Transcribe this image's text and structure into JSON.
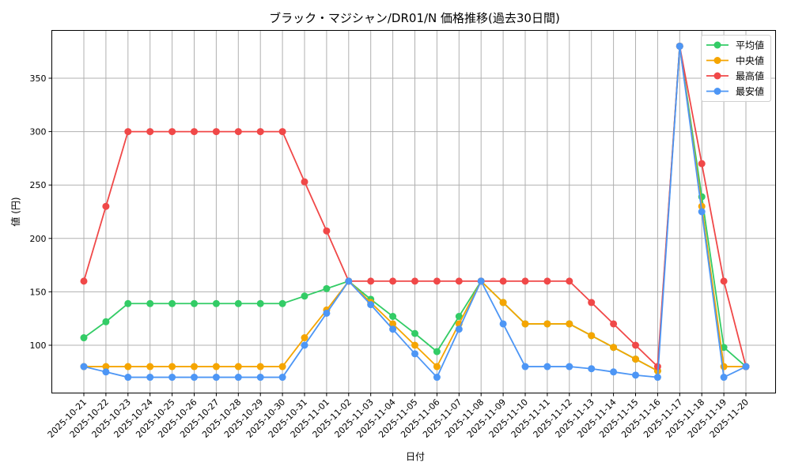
{
  "chart_data": {
    "type": "line",
    "title": "ブラック・マジシャン/DR01/N 価格推移(過去30日間)",
    "xlabel": "日付",
    "ylabel": "値 (円)",
    "ylim": [
      55,
      392
    ],
    "yticks": [
      100,
      150,
      200,
      250,
      300,
      350
    ],
    "grid": true,
    "legend_position": "upper right",
    "x": [
      "2025-10-21",
      "2025-10-22",
      "2025-10-23",
      "2025-10-24",
      "2025-10-25",
      "2025-10-26",
      "2025-10-27",
      "2025-10-28",
      "2025-10-29",
      "2025-10-30",
      "2025-10-31",
      "2025-11-01",
      "2025-11-02",
      "2025-11-03",
      "2025-11-04",
      "2025-11-05",
      "2025-11-06",
      "2025-11-07",
      "2025-11-08",
      "2025-11-09",
      "2025-11-10",
      "2025-11-11",
      "2025-11-12",
      "2025-11-13",
      "2025-11-14",
      "2025-11-15",
      "2025-11-16",
      "2025-11-17",
      "2025-11-18",
      "2025-11-19",
      "2025-11-20"
    ],
    "series": [
      {
        "name": "平均値",
        "color": "#33cc66",
        "values": [
          107,
          122,
          139,
          139,
          139,
          139,
          139,
          139,
          139,
          139,
          146,
          153,
          160,
          143,
          127,
          111,
          94,
          127,
          160,
          140,
          120,
          120,
          120,
          109,
          98,
          87,
          76,
          380,
          239,
          98,
          80
        ]
      },
      {
        "name": "中央値",
        "color": "#f5a500",
        "values": [
          80,
          80,
          80,
          80,
          80,
          80,
          80,
          80,
          80,
          80,
          107,
          133,
          160,
          140,
          120,
          100,
          80,
          120,
          160,
          140,
          120,
          120,
          120,
          109,
          98,
          87,
          76,
          380,
          230,
          80,
          80
        ]
      },
      {
        "name": "最高値",
        "color": "#f04848",
        "values": [
          160,
          230,
          300,
          300,
          300,
          300,
          300,
          300,
          300,
          300,
          253,
          207,
          160,
          160,
          160,
          160,
          160,
          160,
          160,
          160,
          160,
          160,
          160,
          140,
          120,
          100,
          80,
          380,
          270,
          160,
          80
        ]
      },
      {
        "name": "最安値",
        "color": "#4d96f5",
        "values": [
          80,
          75,
          70,
          70,
          70,
          70,
          70,
          70,
          70,
          70,
          100,
          130,
          160,
          138,
          115,
          92,
          70,
          115,
          160,
          120,
          80,
          80,
          80,
          78,
          75,
          72,
          70,
          380,
          225,
          70,
          80
        ]
      }
    ]
  }
}
